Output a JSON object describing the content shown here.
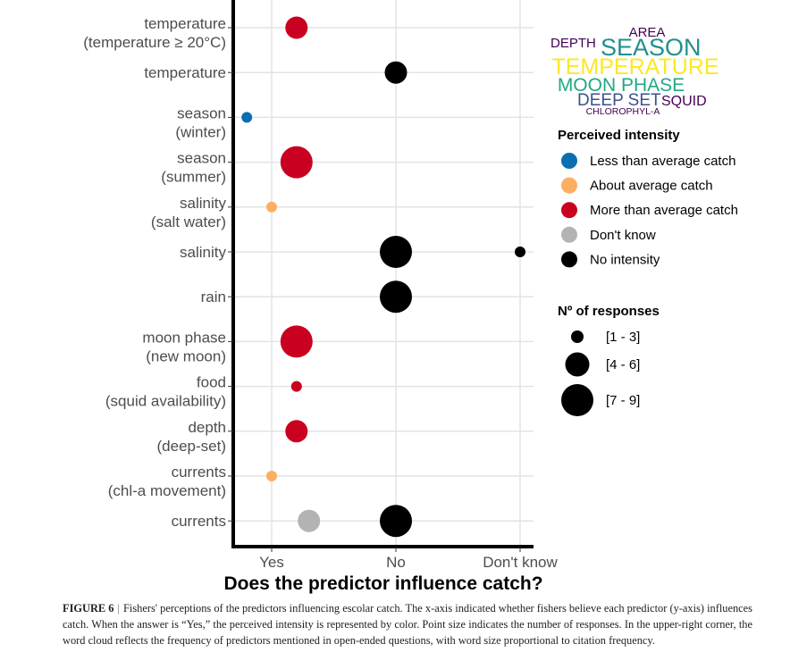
{
  "chart_data": {
    "type": "scatter",
    "title": "",
    "xlabel": "Does the predictor influence catch?",
    "ylabel": "",
    "x_categories": [
      "Yes",
      "No",
      "Don't know"
    ],
    "y_categories": [
      [
        "temperature",
        "(temperature ≥ 20°C)"
      ],
      [
        "temperature"
      ],
      [
        "season",
        "(winter)"
      ],
      [
        "season",
        "(summer)"
      ],
      [
        "salinity",
        "(salt water)"
      ],
      [
        "salinity"
      ],
      [
        "rain"
      ],
      [
        "moon phase",
        "(new moon)"
      ],
      [
        "food",
        "(squid availability)"
      ],
      [
        "depth",
        "(deep-set)"
      ],
      [
        "currents",
        "(chl-a movement)"
      ],
      [
        "currents"
      ]
    ],
    "grid": true,
    "points": [
      {
        "y": 0,
        "x": 0.2,
        "answer": "Yes",
        "intensity": "More than average catch",
        "responses": "[4 - 6]",
        "size_class": 2
      },
      {
        "y": 1,
        "x": 1.0,
        "answer": "No",
        "intensity": "No intensity",
        "responses": "[4 - 6]",
        "size_class": 2
      },
      {
        "y": 2,
        "x": -0.2,
        "answer": "Yes",
        "intensity": "Less than average catch",
        "responses": "[1 - 3]",
        "size_class": 1
      },
      {
        "y": 3,
        "x": 0.2,
        "answer": "Yes",
        "intensity": "More than average catch",
        "responses": "[7 - 9]",
        "size_class": 3
      },
      {
        "y": 4,
        "x": 0.0,
        "answer": "Yes",
        "intensity": "About average catch",
        "responses": "[1 - 3]",
        "size_class": 1
      },
      {
        "y": 5,
        "x": 1.0,
        "answer": "No",
        "intensity": "No intensity",
        "responses": "[7 - 9]",
        "size_class": 3
      },
      {
        "y": 5,
        "x": 2.0,
        "answer": "Don't know",
        "intensity": "No intensity",
        "responses": "[1 - 3]",
        "size_class": 1
      },
      {
        "y": 6,
        "x": 1.0,
        "answer": "No",
        "intensity": "No intensity",
        "responses": "[7 - 9]",
        "size_class": 3
      },
      {
        "y": 7,
        "x": 0.2,
        "answer": "Yes",
        "intensity": "More than average catch",
        "responses": "[7 - 9]",
        "size_class": 3
      },
      {
        "y": 8,
        "x": 0.2,
        "answer": "Yes",
        "intensity": "More than average catch",
        "responses": "[1 - 3]",
        "size_class": 1
      },
      {
        "y": 9,
        "x": 0.2,
        "answer": "Yes",
        "intensity": "More than average catch",
        "responses": "[4 - 6]",
        "size_class": 2
      },
      {
        "y": 10,
        "x": 0.0,
        "answer": "Yes",
        "intensity": "About average catch",
        "responses": "[1 - 3]",
        "size_class": 1
      },
      {
        "y": 11,
        "x": 0.3,
        "answer": "Yes",
        "intensity": "Don't know",
        "responses": "[4 - 6]",
        "size_class": 2
      },
      {
        "y": 11,
        "x": 1.0,
        "answer": "No",
        "intensity": "No intensity",
        "responses": "[7 - 9]",
        "size_class": 3
      }
    ],
    "legend_color": {
      "title": "Perceived intensity",
      "placement": "right",
      "items": [
        {
          "label": "Less than average catch",
          "color": "#0a6fb0"
        },
        {
          "label": "About average catch",
          "color": "#fcae61"
        },
        {
          "label": "More than average catch",
          "color": "#c9001f"
        },
        {
          "label": "Don't know",
          "color": "#b3b3b3"
        },
        {
          "label": "No intensity",
          "color": "#000000"
        }
      ]
    },
    "legend_size": {
      "title": "Nº of responses",
      "placement": "right",
      "items": [
        {
          "label": "[1 - 3]",
          "size_class": 1
        },
        {
          "label": "[4 - 6]",
          "size_class": 2
        },
        {
          "label": "[7 - 9]",
          "size_class": 3
        }
      ]
    },
    "word_cloud": {
      "placement": "top-right",
      "words": [
        {
          "text": "AREA",
          "color": "#440154",
          "rank": 2
        },
        {
          "text": "DEPTH",
          "color": "#440154",
          "rank": 2
        },
        {
          "text": "SEASON",
          "color": "#21908c",
          "rank": 4
        },
        {
          "text": "TEMPERATURE",
          "color": "#fde725",
          "rank": 5
        },
        {
          "text": "MOON PHASE",
          "color": "#22a884",
          "rank": 3
        },
        {
          "text": "DEEP SET",
          "color": "#3b528b",
          "rank": 3
        },
        {
          "text": "SQUID",
          "color": "#440154",
          "rank": 2
        },
        {
          "text": "CHLOROPHYL-A",
          "color": "#440154",
          "rank": 1
        }
      ]
    }
  },
  "caption": {
    "figure_label": "FIGURE 6",
    "separator": "|",
    "text": "Fishers' perceptions of the predictors influencing escolar catch. The x-axis indicated whether fishers believe each predictor (y-axis) influences catch. When the answer is “Yes,” the perceived intensity is represented by color. Point size indicates the number of responses. In the upper-right corner, the word cloud reflects the frequency of predictors mentioned in open-ended questions, with word size proportional to citation frequency."
  }
}
